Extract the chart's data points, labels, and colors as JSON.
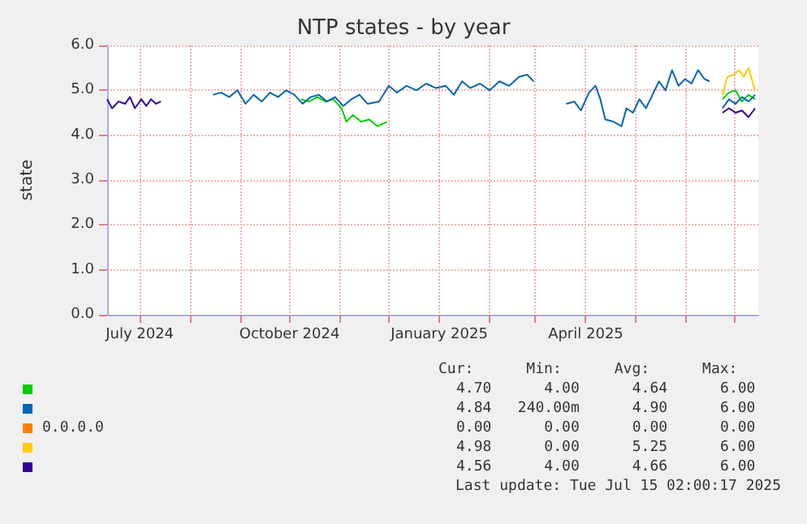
{
  "chart_data": {
    "type": "line",
    "title": "NTP states - by year",
    "ylabel": "state",
    "xlim": [
      "2024-06-11",
      "2025-07-16"
    ],
    "xticks": [
      {
        "value": "2024-07-01",
        "label": "July 2024"
      },
      {
        "value": "2024-08-01",
        "label": null
      },
      {
        "value": "2024-09-01",
        "label": null
      },
      {
        "value": "2024-10-01",
        "label": "October 2024"
      },
      {
        "value": "2024-11-01",
        "label": null
      },
      {
        "value": "2024-12-01",
        "label": null
      },
      {
        "value": "2025-01-01",
        "label": "January 2025"
      },
      {
        "value": "2025-02-01",
        "label": null
      },
      {
        "value": "2025-03-01",
        "label": null
      },
      {
        "value": "2025-04-01",
        "label": "April 2025"
      },
      {
        "value": "2025-05-01",
        "label": null
      },
      {
        "value": "2025-06-01",
        "label": null
      },
      {
        "value": "2025-07-01",
        "label": null
      }
    ],
    "ylim": [
      0,
      6
    ],
    "yticks": [
      {
        "value": 0,
        "label": "0.0"
      },
      {
        "value": 1,
        "label": "1.0"
      },
      {
        "value": 2,
        "label": "2.0"
      },
      {
        "value": 3,
        "label": "3.0"
      },
      {
        "value": 4,
        "label": "4.0"
      },
      {
        "value": 5,
        "label": "5.0"
      },
      {
        "value": 6,
        "label": "6.0"
      }
    ],
    "grid": true,
    "legend": "bottom",
    "marker": "none",
    "line_style": "solid",
    "series": [
      {
        "color": "#00cc00",
        "x": [
          "2024-10-08",
          "2024-10-13",
          "2024-10-18",
          "2024-10-23",
          "2024-10-28",
          "2024-11-02",
          "2024-11-05",
          "2024-11-09",
          "2024-11-14",
          "2024-11-19",
          "2024-11-24",
          "2024-11-30",
          "2025-03-01",
          "2025-06-24",
          "2025-06-28",
          "2025-07-02",
          "2025-07-06",
          "2025-07-10",
          "2025-07-14"
        ],
        "values": [
          4.8,
          4.75,
          4.85,
          4.75,
          4.8,
          4.6,
          4.3,
          4.45,
          4.3,
          4.35,
          4.2,
          4.3,
          null,
          4.8,
          4.95,
          5.0,
          4.75,
          4.9,
          4.8
        ]
      },
      {
        "color": "#0066b3",
        "x": [
          "2024-08-15",
          "2024-08-20",
          "2024-08-25",
          "2024-08-30",
          "2024-09-04",
          "2024-09-09",
          "2024-09-14",
          "2024-09-19",
          "2024-09-24",
          "2024-09-29",
          "2024-10-04",
          "2024-10-09",
          "2024-10-14",
          "2024-10-19",
          "2024-10-24",
          "2024-10-29",
          "2024-11-03",
          "2024-11-08",
          "2024-11-13",
          "2024-11-18",
          "2024-11-25",
          "2024-12-01",
          "2024-12-06",
          "2024-12-12",
          "2024-12-18",
          "2024-12-24",
          "2024-12-30",
          "2025-01-05",
          "2025-01-10",
          "2025-01-15",
          "2025-01-20",
          "2025-01-26",
          "2025-02-01",
          "2025-02-07",
          "2025-02-13",
          "2025-02-19",
          "2025-02-24",
          "2025-02-28",
          "2025-03-10",
          "2025-03-20",
          "2025-03-25",
          "2025-03-29",
          "2025-04-03",
          "2025-04-07",
          "2025-04-10",
          "2025-04-13",
          "2025-04-18",
          "2025-04-23",
          "2025-04-26",
          "2025-04-30",
          "2025-05-04",
          "2025-05-08",
          "2025-05-12",
          "2025-05-16",
          "2025-05-20",
          "2025-05-24",
          "2025-05-28",
          "2025-06-01",
          "2025-06-05",
          "2025-06-09",
          "2025-06-13",
          "2025-06-16",
          "2025-06-20",
          "2025-06-24",
          "2025-06-28",
          "2025-07-02",
          "2025-07-06",
          "2025-07-10",
          "2025-07-14"
        ],
        "values": [
          4.9,
          4.95,
          4.85,
          5.0,
          4.7,
          4.9,
          4.75,
          4.95,
          4.85,
          5.0,
          4.9,
          4.7,
          4.85,
          4.9,
          4.75,
          4.85,
          4.65,
          4.8,
          4.9,
          4.7,
          4.75,
          5.1,
          4.95,
          5.1,
          5.0,
          5.15,
          5.05,
          5.1,
          4.9,
          5.2,
          5.05,
          5.15,
          5.0,
          5.2,
          5.1,
          5.3,
          5.35,
          5.2,
          null,
          4.7,
          4.75,
          4.55,
          4.95,
          5.1,
          4.8,
          4.35,
          4.3,
          4.2,
          4.6,
          4.5,
          4.8,
          4.6,
          4.9,
          5.2,
          5.0,
          5.45,
          5.1,
          5.25,
          5.15,
          5.45,
          5.25,
          5.2,
          null,
          4.6,
          4.8,
          4.7,
          4.85,
          4.75,
          4.9
        ]
      },
      {
        "name": "0.0.0.0",
        "color": "#ff8000"
      },
      {
        "color": "#ffcc00",
        "x": [
          "2025-06-24",
          "2025-06-27",
          "2025-07-01",
          "2025-07-04",
          "2025-07-07",
          "2025-07-10",
          "2025-07-14"
        ],
        "values": [
          4.9,
          5.3,
          5.35,
          5.45,
          5.3,
          5.5,
          5.0
        ]
      },
      {
        "color": "#330099",
        "x": [
          "2024-06-11",
          "2024-06-14",
          "2024-06-18",
          "2024-06-22",
          "2024-06-25",
          "2024-06-28",
          "2024-07-02",
          "2024-07-05",
          "2024-07-08",
          "2024-07-11",
          "2024-07-14",
          "2025-01-01",
          "2025-06-24",
          "2025-06-28",
          "2025-07-02",
          "2025-07-06",
          "2025-07-10",
          "2025-07-14"
        ],
        "values": [
          4.8,
          4.6,
          4.75,
          4.7,
          4.85,
          4.6,
          4.8,
          4.65,
          4.8,
          4.7,
          4.75,
          null,
          4.5,
          4.6,
          4.5,
          4.55,
          4.4,
          4.6
        ]
      }
    ],
    "annotations": [
      "Cur:      Min:      Avg:      Max:",
      "4.70      4.00      4.64      6.00",
      "4.84   240.00m      4.90      6.00",
      "0.00      0.00      0.00      0.00",
      "4.98      0.00      5.25      6.00",
      "4.56      4.00      4.66      6.00",
      "Last update: Tue Jul 15 02:00:17 2025"
    ]
  }
}
